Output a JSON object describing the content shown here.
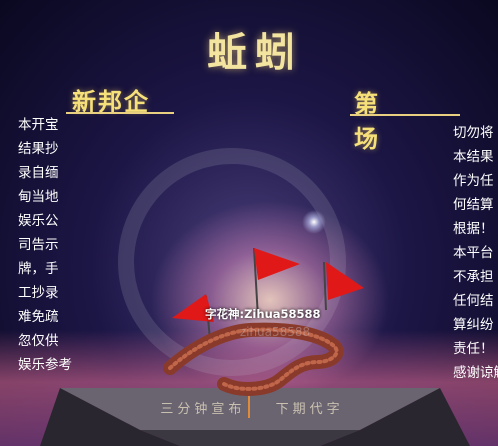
{
  "title": "蚯蚓",
  "subtitle_left": "新邦企",
  "subtitle_right": "第 场",
  "left_column": [
    "本开宝",
    "结果抄",
    "录自缅",
    "甸当地",
    "娱乐公",
    "司告示",
    "牌，手",
    "工抄录",
    "难免疏",
    "忽仅供",
    "娱乐参考"
  ],
  "right_column": [
    "切勿将",
    "本结果",
    "作为任",
    "何结算",
    "根据！",
    "本平台",
    "不承担",
    "任何结",
    "算纠纷",
    "责任！",
    "感谢谅解"
  ],
  "signature": "字花神:Zihua58588",
  "watermark": "zihua58588",
  "plaque": {
    "left_text": "三分钟宣布",
    "right_text": "下期代字"
  },
  "colors": {
    "title": "#f3e4a0",
    "subtitle": "#f6e07a",
    "text": "#ffffff",
    "flag": "#e01818",
    "worm": "#8a3a2a"
  }
}
